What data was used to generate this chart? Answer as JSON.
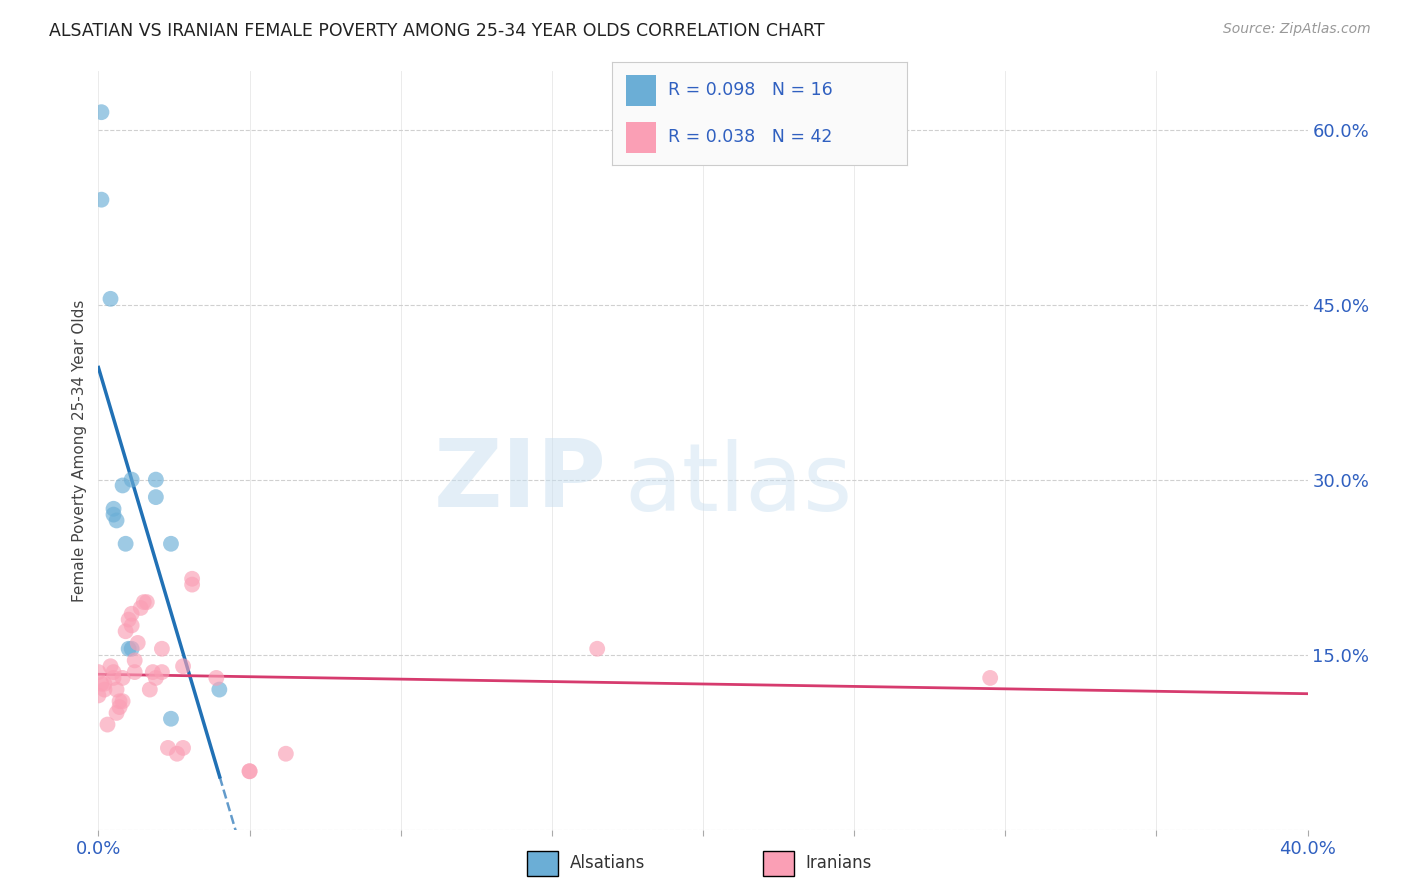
{
  "title": "ALSATIAN VS IRANIAN FEMALE POVERTY AMONG 25-34 YEAR OLDS CORRELATION CHART",
  "source": "Source: ZipAtlas.com",
  "ylabel": "Female Poverty Among 25-34 Year Olds",
  "x_min": 0.0,
  "x_max": 0.4,
  "y_min": 0.0,
  "y_max": 0.65,
  "x_ticks": [
    0.0,
    0.05,
    0.1,
    0.15,
    0.2,
    0.25,
    0.3,
    0.35,
    0.4
  ],
  "x_tick_labels": [
    "0.0%",
    "",
    "",
    "",
    "",
    "",
    "",
    "",
    "40.0%"
  ],
  "y_ticks_right": [
    0.0,
    0.15,
    0.3,
    0.45,
    0.6
  ],
  "y_tick_labels_right": [
    "",
    "15.0%",
    "30.0%",
    "45.0%",
    "60.0%"
  ],
  "alsatian_R": 0.098,
  "alsatian_N": 16,
  "iranian_R": 0.038,
  "iranian_N": 42,
  "alsatian_color": "#6baed6",
  "iranian_color": "#fa9fb5",
  "alsatian_line_color": "#2171b5",
  "iranian_line_color": "#d63b6e",
  "alsatian_scatter_x": [
    0.001,
    0.001,
    0.004,
    0.005,
    0.005,
    0.006,
    0.008,
    0.009,
    0.01,
    0.011,
    0.011,
    0.019,
    0.019,
    0.024,
    0.024,
    0.04
  ],
  "alsatian_scatter_y": [
    0.615,
    0.54,
    0.455,
    0.27,
    0.275,
    0.265,
    0.295,
    0.245,
    0.155,
    0.155,
    0.3,
    0.3,
    0.285,
    0.245,
    0.095,
    0.12
  ],
  "iranian_scatter_x": [
    0.0,
    0.0,
    0.001,
    0.002,
    0.002,
    0.003,
    0.004,
    0.005,
    0.005,
    0.006,
    0.006,
    0.007,
    0.007,
    0.008,
    0.008,
    0.009,
    0.01,
    0.011,
    0.011,
    0.012,
    0.012,
    0.013,
    0.014,
    0.015,
    0.016,
    0.017,
    0.018,
    0.019,
    0.021,
    0.021,
    0.023,
    0.026,
    0.028,
    0.028,
    0.031,
    0.031,
    0.039,
    0.05,
    0.05,
    0.062,
    0.165,
    0.295
  ],
  "iranian_scatter_y": [
    0.135,
    0.115,
    0.125,
    0.125,
    0.12,
    0.09,
    0.14,
    0.135,
    0.13,
    0.12,
    0.1,
    0.11,
    0.105,
    0.13,
    0.11,
    0.17,
    0.18,
    0.175,
    0.185,
    0.145,
    0.135,
    0.16,
    0.19,
    0.195,
    0.195,
    0.12,
    0.135,
    0.13,
    0.155,
    0.135,
    0.07,
    0.065,
    0.07,
    0.14,
    0.215,
    0.21,
    0.13,
    0.05,
    0.05,
    0.065,
    0.155,
    0.13
  ],
  "watermark_zip": "ZIP",
  "watermark_atlas": "atlas",
  "background_color": "#ffffff",
  "grid_color": "#d0d0d0",
  "marker_size": 130,
  "legend_color": "#3060c0"
}
